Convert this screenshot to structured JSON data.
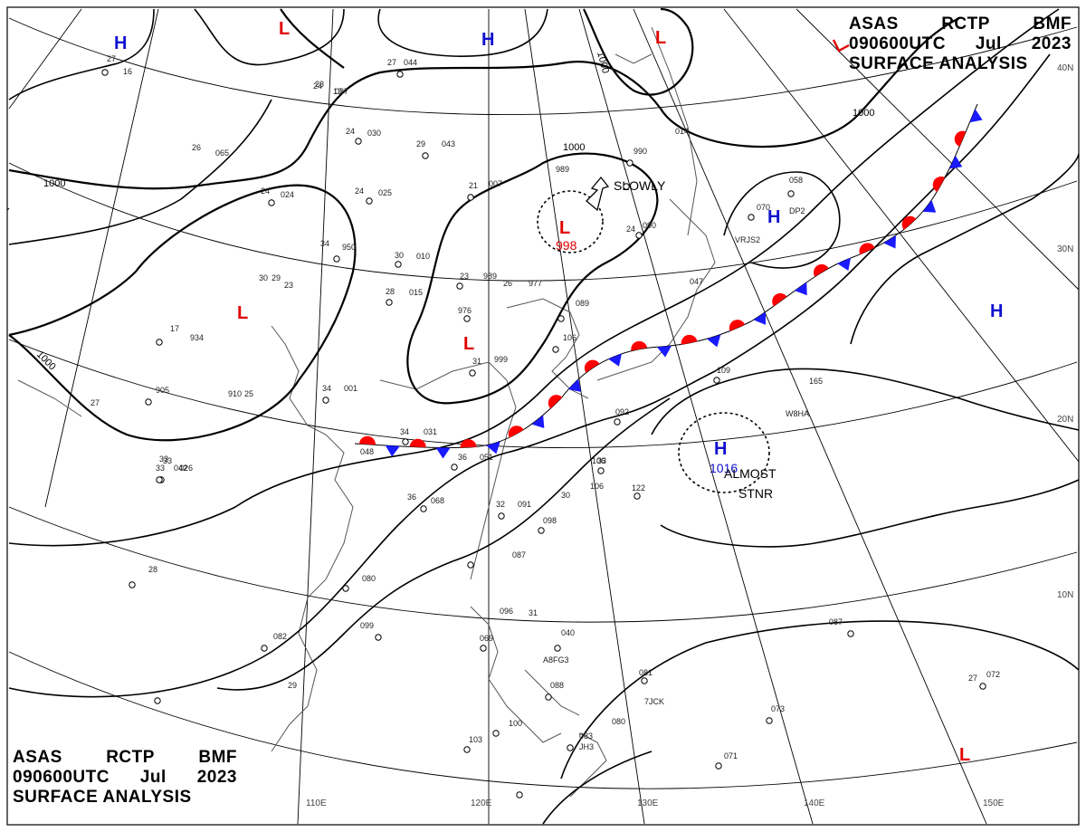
{
  "header": {
    "line1": [
      "ASAS",
      "RCTP",
      "BMF"
    ],
    "line2": [
      "090600UTC",
      "Jul",
      "2023"
    ],
    "line3": "SURFACE ANALYSIS"
  },
  "colors": {
    "high": "#1010d0",
    "low": "#e00000",
    "cold_front": "#1a1aff",
    "warm_front": "#ff0000",
    "isobar": "#000000",
    "grid": "#000000",
    "coast": "#555555"
  },
  "longitude_labels": [
    "110E",
    "120E",
    "130E",
    "140E",
    "150E"
  ],
  "latitude_labels": [
    "40N",
    "30N",
    "20N",
    "10N"
  ],
  "isobar_labels": [
    "1000",
    "1000",
    "1000",
    "1000",
    "1000"
  ],
  "pressure_systems": [
    {
      "type": "H",
      "letter": "H"
    },
    {
      "type": "H",
      "letter": "H"
    },
    {
      "type": "H",
      "letter": "H"
    },
    {
      "type": "H",
      "letter": "H"
    },
    {
      "type": "H",
      "letter": "H",
      "value": "1016"
    },
    {
      "type": "L",
      "letter": "L"
    },
    {
      "type": "L",
      "letter": "L"
    },
    {
      "type": "L",
      "letter": "L"
    },
    {
      "type": "L",
      "letter": "L",
      "value": "998"
    },
    {
      "type": "L",
      "letter": "L"
    },
    {
      "type": "L",
      "letter": "L"
    }
  ],
  "annotations": {
    "slowly": "SLOWLY",
    "almost_stnr_1": "ALMOST",
    "almost_stnr_2": "STNR"
  },
  "station_plots": [
    "27",
    "16",
    "27",
    "044",
    "24",
    "13",
    "23",
    "037",
    "24",
    "030",
    "29",
    "043",
    "26",
    "065",
    "24",
    "025",
    "21",
    "007",
    "989",
    "990",
    "014",
    "24",
    "024",
    "34",
    "950",
    "30",
    "010",
    "28",
    "015",
    "23",
    "989",
    "26",
    "977",
    "976",
    "23",
    "934",
    "17",
    "31",
    "999",
    "905",
    "910",
    "33",
    "026",
    "34",
    "001",
    "34",
    "031",
    "048",
    "36",
    "051",
    "33",
    "042",
    "36",
    "068",
    "32",
    "091",
    "098",
    "087",
    "080",
    "082",
    "099",
    "096",
    "069",
    "040",
    "088",
    "103",
    "100",
    "083",
    "080",
    "071",
    "073",
    "087",
    "072",
    "081",
    "122",
    "106",
    "106",
    "109",
    "092",
    "058",
    "070",
    "165",
    "24",
    "29",
    "30",
    "090",
    "047",
    "089",
    "106",
    "29",
    "27",
    "28",
    "33",
    "30",
    "31",
    "27",
    "25",
    "33",
    "A8FG3",
    "7JCK",
    "VRJS2",
    "W8HA",
    "JH3",
    "DP2"
  ]
}
